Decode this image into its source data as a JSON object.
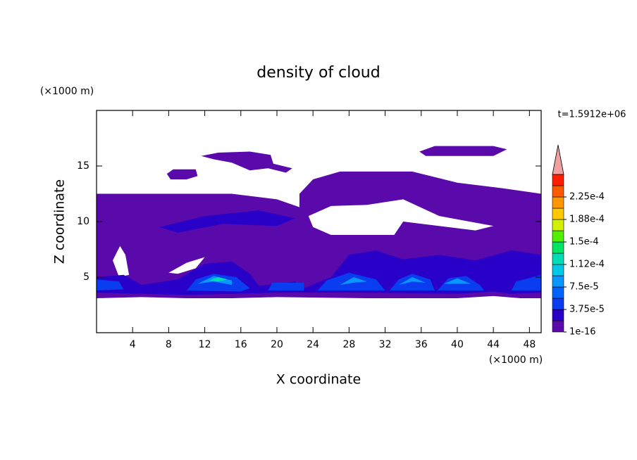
{
  "chart_data": {
    "type": "contour",
    "title": "density of cloud",
    "x_label": "X coordinate",
    "y_label": "Z coordinate",
    "x_unit": "(×1000 m)",
    "y_unit": "(×1000 m)",
    "time_label": "t=1.5912e+06",
    "xlim": [
      0,
      49.3
    ],
    "ylim": [
      0,
      20
    ],
    "xticks": [
      4,
      8,
      12,
      16,
      20,
      24,
      28,
      32,
      36,
      40,
      44,
      48
    ],
    "yticks": [
      5,
      10,
      15
    ],
    "colorbar": {
      "colors": [
        "#5a0aaa",
        "#2800c8",
        "#0a3cf0",
        "#0064ff",
        "#0a96ff",
        "#00c8e6",
        "#00dcb4",
        "#00e664",
        "#50f000",
        "#d2f000",
        "#ffc800",
        "#ff9600",
        "#ff5a00",
        "#ff1e00"
      ],
      "over_color": "#f0a0a0",
      "lim": [
        0,
        0.0002625
      ],
      "ticks": [
        {
          "value": 1e-16,
          "label": "1e-16"
        },
        {
          "value": 3.75e-05,
          "label": "3.75e-5"
        },
        {
          "value": 7.5e-05,
          "label": "7.5e-5"
        },
        {
          "value": 0.0001125,
          "label": "1.12e-4"
        },
        {
          "value": 0.00015,
          "label": "1.5e-4"
        },
        {
          "value": 0.0001875,
          "label": "1.88e-4"
        },
        {
          "value": 0.000225,
          "label": "2.25e-4"
        }
      ]
    },
    "contours": [
      {
        "level": 0,
        "x": [
          0,
          0,
          15,
          20,
          22.5,
          22.5,
          24,
          27,
          35,
          40,
          45,
          49.3,
          49.3,
          47,
          44,
          40,
          30,
          20,
          15,
          10,
          5,
          0,
          null,
          23.5,
          26,
          30,
          34,
          38,
          44,
          42,
          34,
          33,
          26,
          24,
          null,
          8,
          10,
          12,
          11,
          9,
          null,
          1.8,
          2.6,
          3.2,
          3.6,
          2.5,
          null,
          11.6,
          13.5,
          17,
          19.3,
          19.6,
          21.7,
          21,
          19,
          17,
          15,
          13,
          null,
          7.8,
          8.5,
          11,
          11.2,
          10,
          8.2,
          null,
          35.8,
          37.5,
          44,
          45.5,
          44,
          36.5
        ],
        "z": [
          3.1,
          12.5,
          12.5,
          12,
          11.3,
          12.5,
          13.8,
          14.5,
          14.5,
          13.5,
          13,
          12.5,
          3.1,
          3.1,
          3.3,
          3.1,
          3.1,
          3.2,
          3.1,
          3.1,
          3.2,
          3.1,
          null,
          10.5,
          11.4,
          11.5,
          12,
          10.5,
          9.6,
          9.2,
          10,
          8.8,
          8.8,
          9.5,
          null,
          5.4,
          6.3,
          6.8,
          5.8,
          5.3,
          null,
          6.5,
          7.8,
          7,
          5.2,
          5,
          null,
          15.9,
          16.2,
          16.3,
          16,
          15.2,
          14.8,
          14.4,
          14.8,
          14.6,
          15.3,
          15.6,
          null,
          14.3,
          14.7,
          14.7,
          14.1,
          13.8,
          13.8,
          null,
          16.3,
          16.8,
          16.8,
          16.5,
          15.9,
          15.9
        ]
      },
      {
        "level": 1,
        "x": [
          7,
          12,
          18,
          22,
          20,
          14,
          9,
          null,
          0,
          0,
          3,
          5,
          9,
          12,
          15,
          17,
          18,
          22,
          23,
          26,
          28,
          31,
          34,
          38,
          42,
          46,
          49.3,
          49.3,
          46,
          44,
          40,
          30,
          20,
          15,
          10,
          5
        ],
        "z": [
          9.5,
          10.5,
          11,
          10.3,
          9.6,
          9.8,
          9,
          null,
          3.6,
          5,
          5.2,
          4.3,
          4.8,
          6.2,
          6.4,
          5.3,
          4.2,
          4.6,
          4,
          5,
          7,
          7.4,
          6.6,
          7,
          6.5,
          7.4,
          7,
          3.6,
          3.5,
          3.7,
          3.5,
          3.6,
          3.6,
          3.5,
          3.4,
          3.5
        ]
      },
      {
        "level": 2,
        "x": [
          0,
          0,
          2.5,
          3,
          null,
          10,
          11,
          13,
          15.5,
          17,
          16,
          null,
          19,
          19.5,
          23,
          23,
          null,
          24.5,
          25.5,
          28,
          31,
          32,
          null,
          32.5,
          33.5,
          35,
          37,
          37.5,
          null,
          37.8,
          39,
          41,
          42.5,
          43,
          null,
          46,
          46.5,
          49.3,
          49.3
        ],
        "z": [
          3.8,
          4.8,
          4.6,
          3.9,
          null,
          3.8,
          4.8,
          5.3,
          5,
          4,
          3.7,
          null,
          3.8,
          4.5,
          4.5,
          3.8,
          null,
          3.8,
          4.7,
          5.4,
          4.8,
          3.8,
          null,
          3.8,
          4.8,
          5.3,
          4.8,
          3.8,
          null,
          3.8,
          4.9,
          5.1,
          4.3,
          3.8,
          null,
          3.8,
          4.6,
          5.2,
          3.8
        ]
      },
      {
        "level": 4,
        "x": [
          11.2,
          13,
          15,
          15,
          13,
          null,
          27,
          28.5,
          30,
          28.5,
          null,
          33.5,
          35,
          36.5,
          35,
          null,
          38.5,
          40,
          41.5
        ],
        "z": [
          4.4,
          5.1,
          4.7,
          4.3,
          4.6,
          null,
          4.3,
          5,
          4.6,
          4.5,
          null,
          4.3,
          5,
          4.5,
          4.6,
          null,
          4.4,
          4.9,
          4.4
        ]
      },
      {
        "level": 6,
        "x": [
          12.5,
          13.5,
          14.5,
          13.5
        ],
        "z": [
          4.7,
          5,
          4.8,
          4.6
        ]
      }
    ]
  }
}
